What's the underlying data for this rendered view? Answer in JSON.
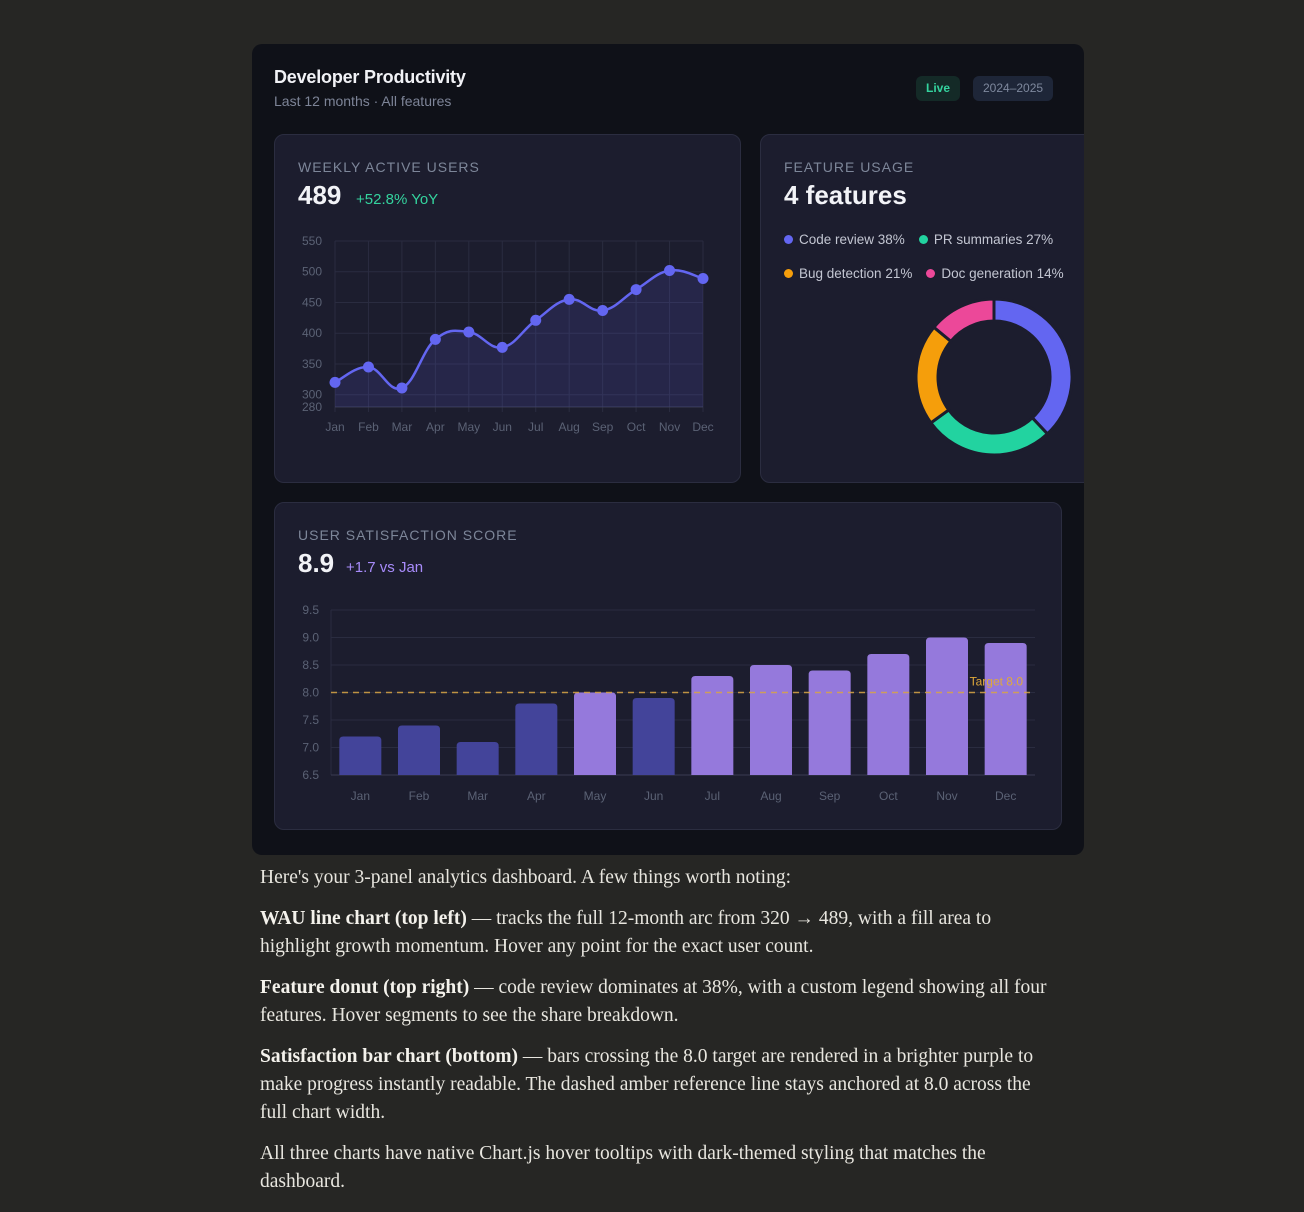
{
  "header": {
    "title": "Developer Productivity",
    "subtitle": "Last 12 months · All features",
    "badge_live": "Live",
    "badge_period": "2024–2025"
  },
  "colors": {
    "accent_indigo": "#6366f1",
    "green": "#22d3a0",
    "amber": "#f59e0b",
    "pink": "#ec4899",
    "bar_below": "#43449a",
    "bar_above": "#9579dc",
    "target_line": "#d9a545"
  },
  "wau": {
    "label": "WEEKLY ACTIVE USERS",
    "value": "489",
    "delta": "+52.8% YoY"
  },
  "features": {
    "label": "FEATURE USAGE",
    "value": "4 features",
    "legend": [
      {
        "label": "Code review 38%",
        "color": "#6366f1"
      },
      {
        "label": "PR summaries 27%",
        "color": "#22d3a0"
      },
      {
        "label": "Bug detection 21%",
        "color": "#f59e0b"
      },
      {
        "label": "Doc generation 14%",
        "color": "#ec4899"
      }
    ]
  },
  "satisfaction": {
    "label": "USER SATISFACTION SCORE",
    "value": "8.9",
    "delta": "+1.7 vs Jan",
    "target_label": "Target 8.0"
  },
  "chart_data": [
    {
      "type": "line",
      "title": "Weekly Active Users",
      "categories": [
        "Jan",
        "Feb",
        "Mar",
        "Apr",
        "May",
        "Jun",
        "Jul",
        "Aug",
        "Sep",
        "Oct",
        "Nov",
        "Dec"
      ],
      "values": [
        320,
        345,
        311,
        390,
        402,
        377,
        421,
        455,
        437,
        471,
        502,
        489
      ],
      "yticks": [
        280,
        300,
        350,
        400,
        450,
        500,
        550
      ],
      "ylim": [
        280,
        550
      ],
      "fill": true,
      "grid": true
    },
    {
      "type": "pie",
      "title": "Feature Usage",
      "donut": true,
      "categories": [
        "Code review",
        "PR summaries",
        "Bug detection",
        "Doc generation"
      ],
      "values": [
        38,
        27,
        21,
        14
      ]
    },
    {
      "type": "bar",
      "title": "User Satisfaction Score",
      "categories": [
        "Jan",
        "Feb",
        "Mar",
        "Apr",
        "May",
        "Jun",
        "Jul",
        "Aug",
        "Sep",
        "Oct",
        "Nov",
        "Dec"
      ],
      "values": [
        7.2,
        7.4,
        7.1,
        7.8,
        8.0,
        7.9,
        8.3,
        8.5,
        8.4,
        8.7,
        9.0,
        8.9
      ],
      "yticks": [
        6.5,
        7.0,
        7.5,
        8.0,
        8.5,
        9.0,
        9.5
      ],
      "ylim": [
        6.5,
        9.5
      ],
      "reference_line": {
        "value": 8.0,
        "label": "Target 8.0"
      },
      "grid": true
    }
  ],
  "prose": {
    "intro": "Here's your 3-panel analytics dashboard. A few things worth noting:",
    "p1_bold": "WAU line chart (top left)",
    "p1_text": " — tracks the full 12-month arc from 320 → 489, with a fill area to highlight growth momentum. Hover any point for the exact user count.",
    "p2_bold": "Feature donut (top right)",
    "p2_text": " — code review dominates at 38%, with a custom legend showing all four features. Hover segments to see the share breakdown.",
    "p3_bold": "Satisfaction bar chart (bottom)",
    "p3_text": " — bars crossing the 8.0 target are rendered in a brighter purple to make progress instantly readable. The dashed amber reference line stays anchored at 8.0 across the full chart width.",
    "outro": "All three charts have native Chart.js hover tooltips with dark-themed styling that matches the dashboard."
  }
}
